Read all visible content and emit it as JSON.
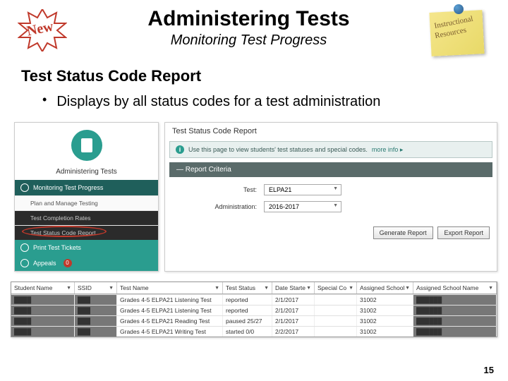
{
  "header": {
    "new_badge": "New",
    "title": "Administering Tests",
    "subtitle": "Monitoring Test Progress",
    "note_line1": "Instructional",
    "note_line2": "Resources"
  },
  "section": {
    "title": "Test Status Code Report",
    "bullet": "Displays by all status codes for a test administration"
  },
  "sidebar": {
    "title": "Administering Tests",
    "heading1": "Monitoring Test Progress",
    "item1": "Plan and Manage Testing",
    "item2": "Test Completion Rates",
    "item3": "Test Status Code Report",
    "heading2": "Print Test Tickets",
    "heading3": "Appeals",
    "appeals_badge": "0"
  },
  "report": {
    "title": "Test Status Code Report",
    "info_text": "Use this page to view students' test statuses and special codes.",
    "more_info": "more info ▸",
    "criteria_label": "Report Criteria",
    "test_label": "Test:",
    "test_value": "ELPA21",
    "admin_label": "Administration:",
    "admin_value": "2016-2017",
    "btn_generate": "Generate Report",
    "btn_export": "Export Report"
  },
  "table": {
    "columns": [
      "Student Name",
      "SSID",
      "Test Name",
      "Test Status",
      "Date Starte",
      "Special Co",
      "Assigned School",
      "Assigned School Name"
    ],
    "rows": [
      {
        "c3": "Grades 4-5 ELPA21 Listening Test",
        "c4": "reported",
        "c5": "2/1/2017",
        "c7": "31002"
      },
      {
        "c3": "Grades 4-5 ELPA21 Listening Test",
        "c4": "reported",
        "c5": "2/1/2017",
        "c7": "31002"
      },
      {
        "c3": "Grades 4-5 ELPA21 Reading Test",
        "c4": "paused 25/27",
        "c5": "2/1/2017",
        "c7": "31002"
      },
      {
        "c3": "Grades 4-5 ELPA21 Writing Test",
        "c4": "started 0/0",
        "c5": "2/2/2017",
        "c7": "31002"
      }
    ]
  },
  "page_number": "15",
  "colors": {
    "teal": "#2a9d8f",
    "dark_teal": "#1f5f5b",
    "red": "#c0392b"
  }
}
